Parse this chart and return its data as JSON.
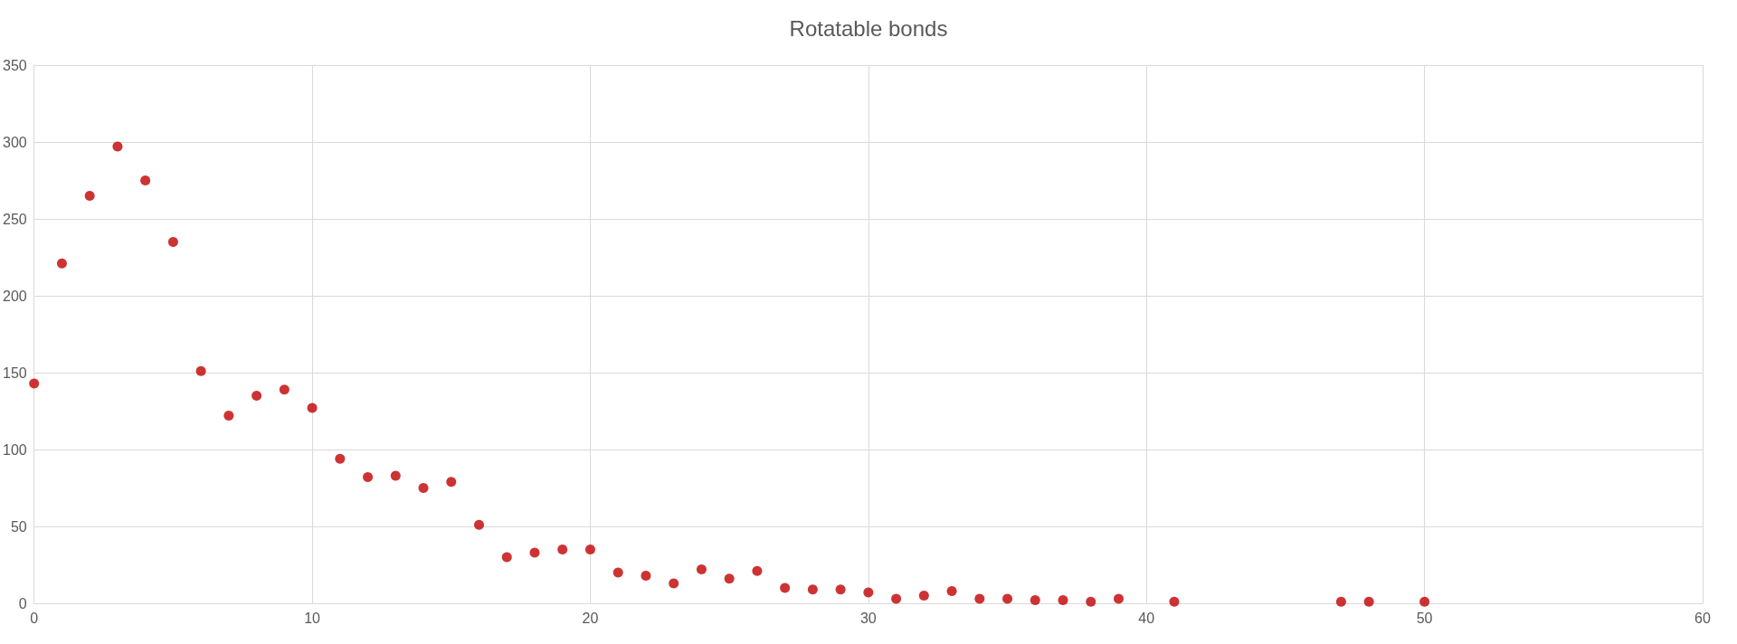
{
  "chart_data": {
    "type": "scatter",
    "title": "Rotatable bonds",
    "x": [
      0,
      1,
      2,
      3,
      4,
      5,
      6,
      7,
      8,
      9,
      10,
      11,
      12,
      13,
      14,
      15,
      16,
      17,
      18,
      19,
      20,
      21,
      22,
      23,
      24,
      25,
      26,
      27,
      28,
      29,
      30,
      31,
      32,
      33,
      34,
      35,
      36,
      37,
      38,
      39,
      41,
      47,
      48,
      50
    ],
    "values": [
      143,
      221,
      265,
      297,
      275,
      235,
      151,
      122,
      135,
      139,
      127,
      94,
      82,
      83,
      75,
      79,
      51,
      30,
      33,
      35,
      35,
      20,
      18,
      13,
      22,
      16,
      21,
      10,
      9,
      9,
      7,
      3,
      5,
      8,
      3,
      3,
      2,
      2,
      1,
      3,
      1,
      1,
      1,
      1
    ],
    "color": "#c00000",
    "marker": "circle",
    "xlim": [
      0,
      60
    ],
    "xticks": [
      0,
      10,
      20,
      30,
      40,
      50,
      60
    ],
    "ylim": [
      0,
      350
    ],
    "yticks": [
      0,
      50,
      100,
      150,
      200,
      250,
      300,
      350
    ],
    "grid": true
  }
}
